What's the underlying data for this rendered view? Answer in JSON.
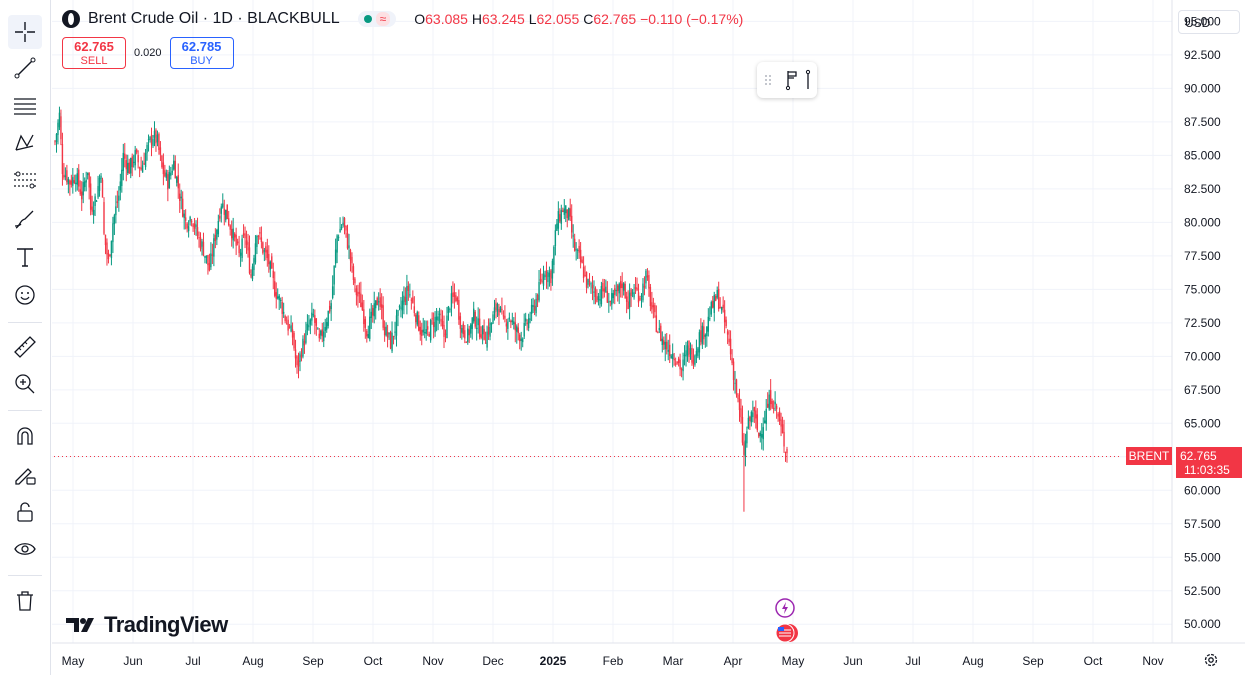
{
  "header": {
    "symbol": "Brent Crude Oil · 1D · BLACKBULL",
    "status_icon_text": "≈",
    "open_label": "O",
    "open": "63.085",
    "high_label": "H",
    "high": "63.245",
    "low_label": "L",
    "low": "62.055",
    "close_label": "C",
    "close": "62.765",
    "change": "−0.110 (−0.17%)"
  },
  "trade": {
    "sell_price": "62.765",
    "sell_label": "SELL",
    "spread": "0.020",
    "buy_price": "62.785",
    "buy_label": "BUY"
  },
  "currency": "USD",
  "watermark": "TradingView",
  "toolbar": {
    "icons": [
      "crosshair-icon",
      "trend-line-icon",
      "horizontal-lines-icon",
      "pattern-icon",
      "fib-icon",
      "brush-icon",
      "text-icon",
      "emoji-icon",
      "ruler-icon",
      "zoom-in-icon",
      "magnet-icon",
      "lock-draw-icon",
      "lock-icon",
      "eye-icon",
      "trash-icon"
    ]
  },
  "chart_data": {
    "type": "candlestick",
    "title": "Brent Crude Oil · 1D · BLACKBULL",
    "ylim": [
      48.6,
      96.6
    ],
    "y_ticks": [
      "95.000",
      "92.500",
      "90.000",
      "87.500",
      "85.000",
      "82.500",
      "80.000",
      "77.500",
      "75.000",
      "72.500",
      "70.000",
      "67.500",
      "65.000",
      "62.500",
      "60.000",
      "57.500",
      "55.000",
      "52.500",
      "50.000"
    ],
    "x_ticks": [
      "May",
      "Jun",
      "Jul",
      "Aug",
      "Sep",
      "Oct",
      "Nov",
      "Dec",
      "2025",
      "Feb",
      "Mar",
      "Apr",
      "May",
      "Jun",
      "Jul",
      "Aug",
      "Sep",
      "Oct",
      "Nov"
    ],
    "up_color": "#089981",
    "down_color": "#f23645",
    "grid": true,
    "last_price": {
      "label": "BRENT",
      "value": "62.765",
      "countdown": "11:03:35"
    },
    "close_series_approx": [
      [
        0,
        86.0
      ],
      [
        3,
        88.0
      ],
      [
        5,
        84.0
      ],
      [
        10,
        83.0
      ],
      [
        14,
        83.5
      ],
      [
        18,
        82.0
      ],
      [
        22,
        84.0
      ],
      [
        24,
        81.0
      ],
      [
        28,
        82.0
      ],
      [
        31,
        84.0
      ],
      [
        33,
        79.0
      ],
      [
        36,
        77.0
      ],
      [
        39,
        80.0
      ],
      [
        43,
        82.0
      ],
      [
        46,
        85.0
      ],
      [
        50,
        84.0
      ],
      [
        54,
        85.0
      ],
      [
        58,
        84.0
      ],
      [
        62,
        85.5
      ],
      [
        66,
        86.5
      ],
      [
        69,
        86.0
      ],
      [
        72,
        84.0
      ],
      [
        76,
        83.0
      ],
      [
        80,
        84.5
      ],
      [
        84,
        82.0
      ],
      [
        88,
        80.0
      ],
      [
        92,
        80.5
      ],
      [
        96,
        79.0
      ],
      [
        100,
        78.0
      ],
      [
        104,
        76.5
      ],
      [
        108,
        79.0
      ],
      [
        112,
        81.5
      ],
      [
        116,
        80.5
      ],
      [
        120,
        79.0
      ],
      [
        124,
        77.5
      ],
      [
        128,
        79.0
      ],
      [
        132,
        76.0
      ],
      [
        136,
        79.5
      ],
      [
        140,
        78.0
      ],
      [
        144,
        77.0
      ],
      [
        148,
        75.0
      ],
      [
        152,
        74.0
      ],
      [
        156,
        72.5
      ],
      [
        160,
        71.5
      ],
      [
        163,
        69.0
      ],
      [
        166,
        70.5
      ],
      [
        170,
        72.0
      ],
      [
        174,
        73.0
      ],
      [
        178,
        71.0
      ],
      [
        182,
        72.5
      ],
      [
        186,
        74.0
      ],
      [
        190,
        79.0
      ],
      [
        194,
        80.0
      ],
      [
        198,
        78.0
      ],
      [
        202,
        75.0
      ],
      [
        206,
        74.0
      ],
      [
        210,
        72.0
      ],
      [
        214,
        73.0
      ],
      [
        218,
        74.5
      ],
      [
        222,
        72.0
      ],
      [
        226,
        71.0
      ],
      [
        230,
        72.5
      ],
      [
        234,
        74.0
      ],
      [
        238,
        75.0
      ],
      [
        242,
        73.5
      ],
      [
        246,
        72.0
      ],
      [
        250,
        71.5
      ],
      [
        254,
        72.5
      ],
      [
        258,
        73.0
      ],
      [
        262,
        71.5
      ],
      [
        266,
        74.0
      ],
      [
        270,
        74.5
      ],
      [
        274,
        72.0
      ],
      [
        278,
        71.5
      ],
      [
        282,
        73.0
      ],
      [
        286,
        72.0
      ],
      [
        290,
        71.5
      ],
      [
        294,
        72.5
      ],
      [
        298,
        74.0
      ],
      [
        302,
        72.5
      ],
      [
        306,
        73.0
      ],
      [
        310,
        72.0
      ],
      [
        314,
        71.5
      ],
      [
        318,
        72.5
      ],
      [
        322,
        73.5
      ],
      [
        326,
        75.0
      ],
      [
        330,
        76.5
      ],
      [
        334,
        76.0
      ],
      [
        338,
        80.0
      ],
      [
        342,
        81.0
      ],
      [
        346,
        80.5
      ],
      [
        350,
        78.0
      ],
      [
        354,
        77.0
      ],
      [
        358,
        75.5
      ],
      [
        362,
        75.0
      ],
      [
        366,
        74.5
      ],
      [
        370,
        75.0
      ],
      [
        374,
        74.0
      ],
      [
        378,
        74.5
      ],
      [
        382,
        75.5
      ],
      [
        386,
        74.0
      ],
      [
        390,
        75.0
      ],
      [
        394,
        74.5
      ],
      [
        398,
        76.0
      ],
      [
        402,
        73.5
      ],
      [
        406,
        72.0
      ],
      [
        410,
        71.0
      ],
      [
        414,
        70.5
      ],
      [
        418,
        70.0
      ],
      [
        422,
        69.0
      ],
      [
        426,
        70.5
      ],
      [
        430,
        70.0
      ],
      [
        434,
        71.5
      ],
      [
        438,
        72.0
      ],
      [
        442,
        73.5
      ],
      [
        446,
        74.5
      ],
      [
        450,
        73.0
      ],
      [
        454,
        71.0
      ],
      [
        458,
        68.0
      ],
      [
        462,
        65.0
      ],
      [
        464,
        62.5
      ],
      [
        466,
        64.5
      ],
      [
        470,
        66.0
      ],
      [
        474,
        64.0
      ],
      [
        478,
        65.5
      ],
      [
        482,
        67.0
      ],
      [
        486,
        66.0
      ],
      [
        488,
        65.0
      ],
      [
        490,
        64.0
      ],
      [
        493,
        62.765
      ]
    ]
  }
}
